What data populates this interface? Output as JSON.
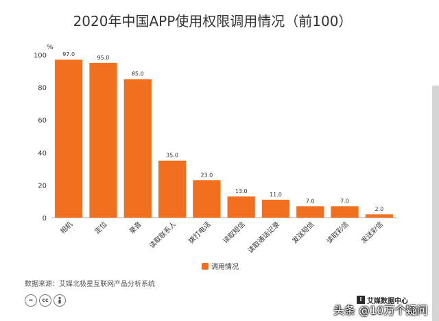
{
  "chart_data": {
    "type": "bar",
    "title": "2020年中国APP使用权限调用情况（前100）",
    "unit": "%",
    "categories": [
      "相机",
      "定位",
      "录音",
      "读取联系人",
      "拨打电话",
      "读取短信",
      "读取通话记录",
      "发送短信",
      "读取彩信",
      "发送彩信"
    ],
    "series": [
      {
        "name": "调用情况",
        "values": [
          97.0,
          95.0,
          85.0,
          35.0,
          23.0,
          13.0,
          11.0,
          7.0,
          7.0,
          2.0
        ],
        "color": "#f07020"
      }
    ],
    "data_labels": [
      "97.0",
      "95.0",
      "85.0",
      "35.0",
      "23.0",
      "13.0",
      "11.0",
      "7.0",
      "7.0",
      "2.0"
    ],
    "ylim": [
      0,
      100
    ],
    "yticks": [
      0,
      20,
      40,
      60,
      80,
      100
    ],
    "grid": false,
    "legend_position": "bottom-center"
  },
  "source_text": "数据来源：艾媒北极星互联网产品分析系统",
  "license_icons": [
    "=",
    "cc",
    "person-icon"
  ],
  "logo_text": "艾媒数据中心",
  "watermark_text": "头条 @10万个疑问",
  "colors": {
    "bar": "#f07020",
    "text": "#333333",
    "axis": "#aaaaaa"
  }
}
